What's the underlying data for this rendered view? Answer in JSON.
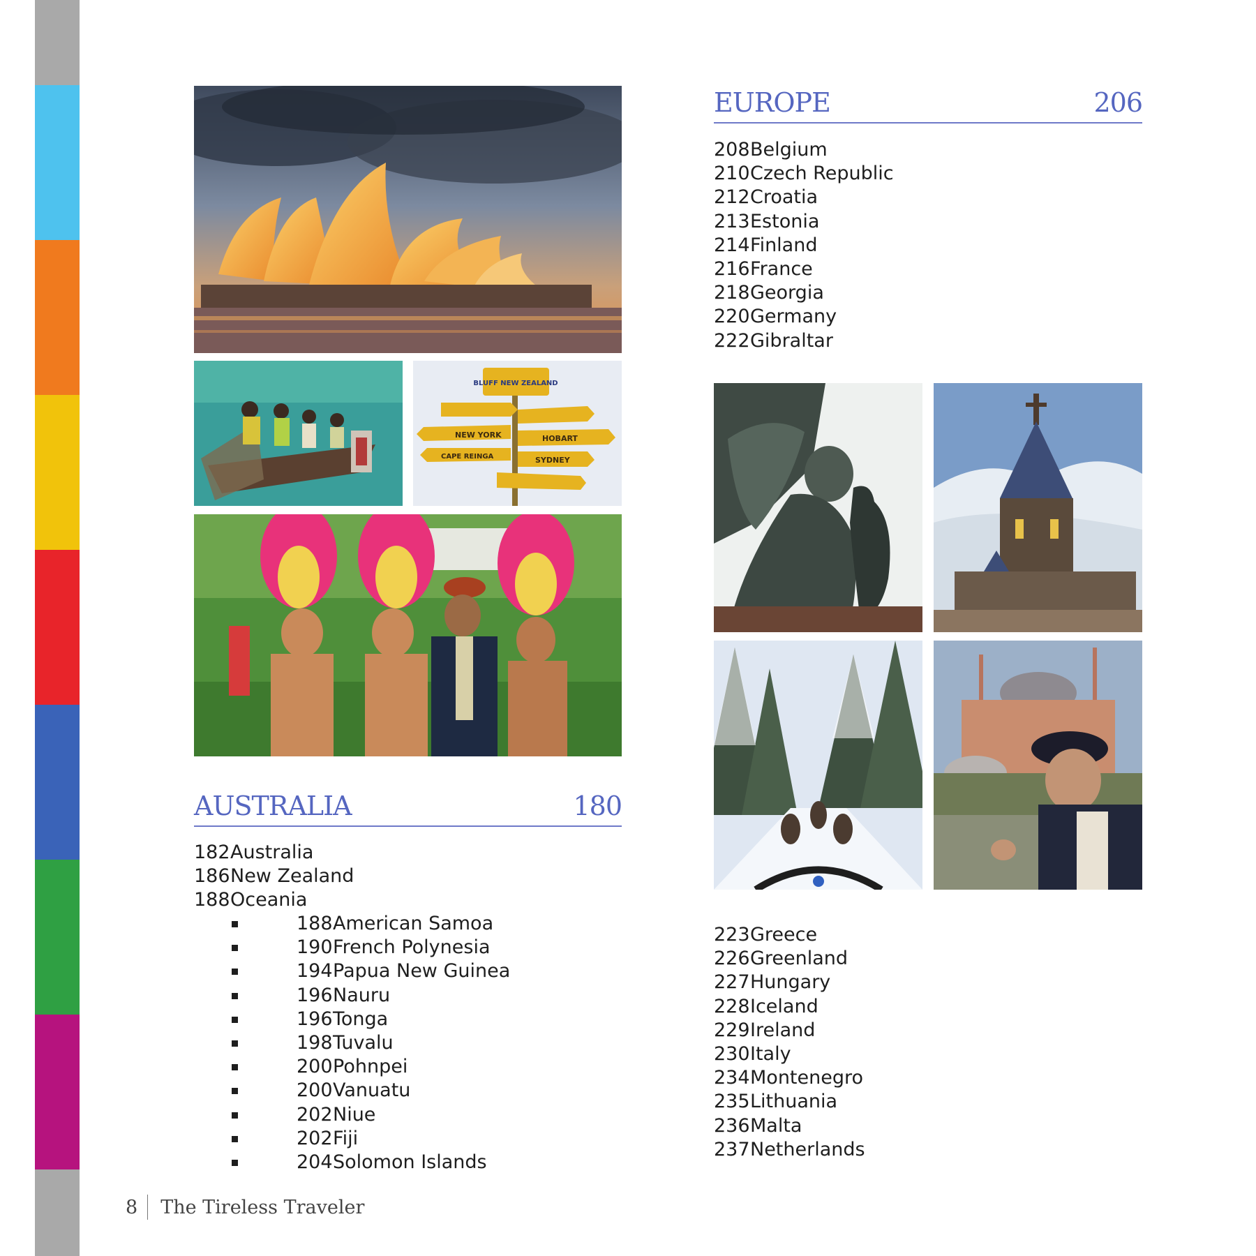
{
  "colors": {
    "accent": "#5566c0",
    "tabs": [
      "#a9a9a9",
      "#4ec2ee",
      "#f07a1e",
      "#f1c30b",
      "#e8242a",
      "#3a63b8",
      "#2fa043",
      "#b6137e",
      "#a9a9a9"
    ]
  },
  "australia": {
    "title": "AUSTRALIA",
    "page": "180",
    "items": [
      {
        "pg": "182",
        "name": "Australia"
      },
      {
        "pg": "186",
        "name": "New Zealand"
      },
      {
        "pg": "188",
        "name": "Oceania"
      }
    ],
    "subitems": [
      {
        "pg": "188",
        "name": "American Samoa"
      },
      {
        "pg": "190",
        "name": "French Polynesia"
      },
      {
        "pg": "194",
        "name": "Papua New Guinea"
      },
      {
        "pg": "196",
        "name": "Nauru"
      },
      {
        "pg": "196",
        "name": "Tonga"
      },
      {
        "pg": "198",
        "name": "Tuvalu"
      },
      {
        "pg": "200",
        "name": "Pohnpei"
      },
      {
        "pg": "200",
        "name": "Vanuatu"
      },
      {
        "pg": "202",
        "name": "Niue"
      },
      {
        "pg": "202",
        "name": "Fiji"
      },
      {
        "pg": "204",
        "name": "Solomon Islands"
      }
    ]
  },
  "europe": {
    "title": "EUROPE",
    "page": "206",
    "items_top": [
      {
        "pg": "208",
        "name": "Belgium"
      },
      {
        "pg": "210",
        "name": "Czech Republic"
      },
      {
        "pg": "212",
        "name": "Croatia"
      },
      {
        "pg": "213",
        "name": "Estonia"
      },
      {
        "pg": "214",
        "name": "Finland"
      },
      {
        "pg": "216",
        "name": "France"
      },
      {
        "pg": "218",
        "name": "Georgia"
      },
      {
        "pg": "220",
        "name": "Germany"
      },
      {
        "pg": "222",
        "name": "Gibraltar"
      }
    ],
    "items_bottom": [
      {
        "pg": "223",
        "name": "Greece"
      },
      {
        "pg": "226",
        "name": "Greenland"
      },
      {
        "pg": "227",
        "name": "Hungary"
      },
      {
        "pg": "228",
        "name": "Iceland"
      },
      {
        "pg": "229",
        "name": "Ireland"
      },
      {
        "pg": "230",
        "name": "Italy"
      },
      {
        "pg": "234",
        "name": "Montenegro"
      },
      {
        "pg": "235",
        "name": "Lithuania"
      },
      {
        "pg": "236",
        "name": "Malta"
      },
      {
        "pg": "237",
        "name": "Netherlands"
      }
    ]
  },
  "photos": {
    "opera_house": "sydney-opera-house-photo",
    "canoe": "outrigger-canoe-photo",
    "signpost": "bluff-new-zealand-signpost-photo",
    "dancers": "polynesian-dancers-photo",
    "statue": "angel-statue-photo",
    "church": "wooden-church-photo",
    "sled": "dog-sled-photo",
    "hagia_sophia": "hagia-sophia-photo"
  },
  "signpost_text": {
    "top": "BLUFF NEW ZEALAND",
    "new_york": "NEW YORK",
    "cape": "CAPE REINGA",
    "hobart": "HOBART",
    "sydney": "SYDNEY"
  },
  "footer": {
    "page_number": "8",
    "book_title": "The Tireless Traveler"
  }
}
